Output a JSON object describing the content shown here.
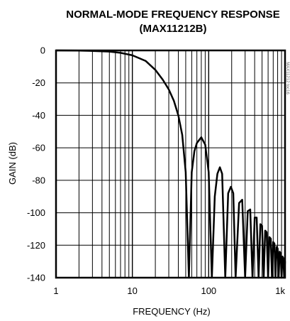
{
  "chart_data": {
    "type": "line",
    "title": "NORMAL-MODE FREQUENCY RESPONSE",
    "subtitle": "(MAX11212B)",
    "xlabel": "FREQUENCY (Hz)",
    "ylabel": "GAIN (dB)",
    "x_scale": "log",
    "xlim": [
      1,
      1000
    ],
    "ylim": [
      -140,
      0
    ],
    "x_tick_labels": [
      "1",
      "10",
      "100",
      "1k"
    ],
    "y_tick_labels": [
      "0",
      "-20",
      "-40",
      "-60",
      "-80",
      "-100",
      "-120",
      "-140"
    ],
    "grid": true,
    "side_code": "MAX11212 toc16",
    "series": [
      {
        "x": [
          1,
          2,
          3,
          5,
          7,
          10,
          15,
          20,
          25,
          30,
          35,
          40,
          45,
          50,
          55,
          60,
          65,
          70,
          80,
          90,
          100,
          110,
          120,
          130,
          140,
          150,
          165,
          180,
          195,
          210,
          225,
          250,
          275,
          300,
          325,
          350,
          375,
          400,
          425,
          450,
          475,
          500,
          525,
          550,
          575,
          600,
          625,
          650,
          675,
          700,
          725,
          750,
          775,
          800,
          825,
          850,
          875,
          900,
          925,
          950,
          975,
          1000
        ],
        "y": [
          0,
          -0.1,
          -0.3,
          -0.7,
          -1.5,
          -3,
          -6.5,
          -12,
          -18,
          -24,
          -31,
          -40,
          -52,
          -75,
          -140,
          -75,
          -62,
          -57,
          -53.5,
          -58,
          -75,
          -140,
          -90,
          -76,
          -72,
          -76,
          -140,
          -88,
          -84,
          -88,
          -140,
          -94,
          -92,
          -140,
          -99,
          -98,
          -140,
          -103,
          -103,
          -140,
          -107,
          -108,
          -140,
          -111,
          -112,
          -140,
          -115,
          -116,
          -140,
          -118,
          -119,
          -140,
          -121,
          -122,
          -140,
          -124,
          -125,
          -140,
          -127,
          -128,
          -140,
          -130
        ]
      }
    ]
  }
}
